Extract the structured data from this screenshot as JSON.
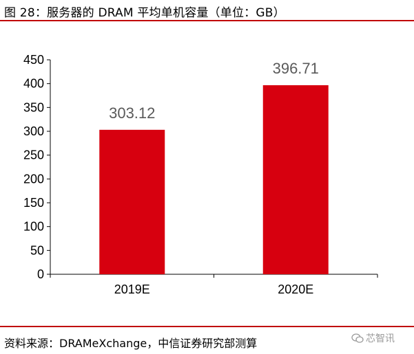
{
  "header": {
    "title": "图 28：服务器的 DRAM 平均单机容量（单位：GB）"
  },
  "footer": {
    "source": "资料来源：DRAMeXchange，中信证券研究部测算",
    "watermark": "芯智讯",
    "watermark_icon": "wechat-icon"
  },
  "colors": {
    "bar": "#d7000f",
    "rule": "#c00000",
    "label": "#595959"
  },
  "chart_data": {
    "type": "bar",
    "title": "",
    "xlabel": "",
    "ylabel": "",
    "categories": [
      "2019E",
      "2020E"
    ],
    "values": [
      303.12,
      396.71
    ],
    "data_labels": [
      "303.12",
      "396.71"
    ],
    "ylim": [
      0,
      450
    ],
    "yticks": [
      0,
      50,
      100,
      150,
      200,
      250,
      300,
      350,
      400,
      450
    ],
    "grid": false,
    "legend": "none"
  }
}
